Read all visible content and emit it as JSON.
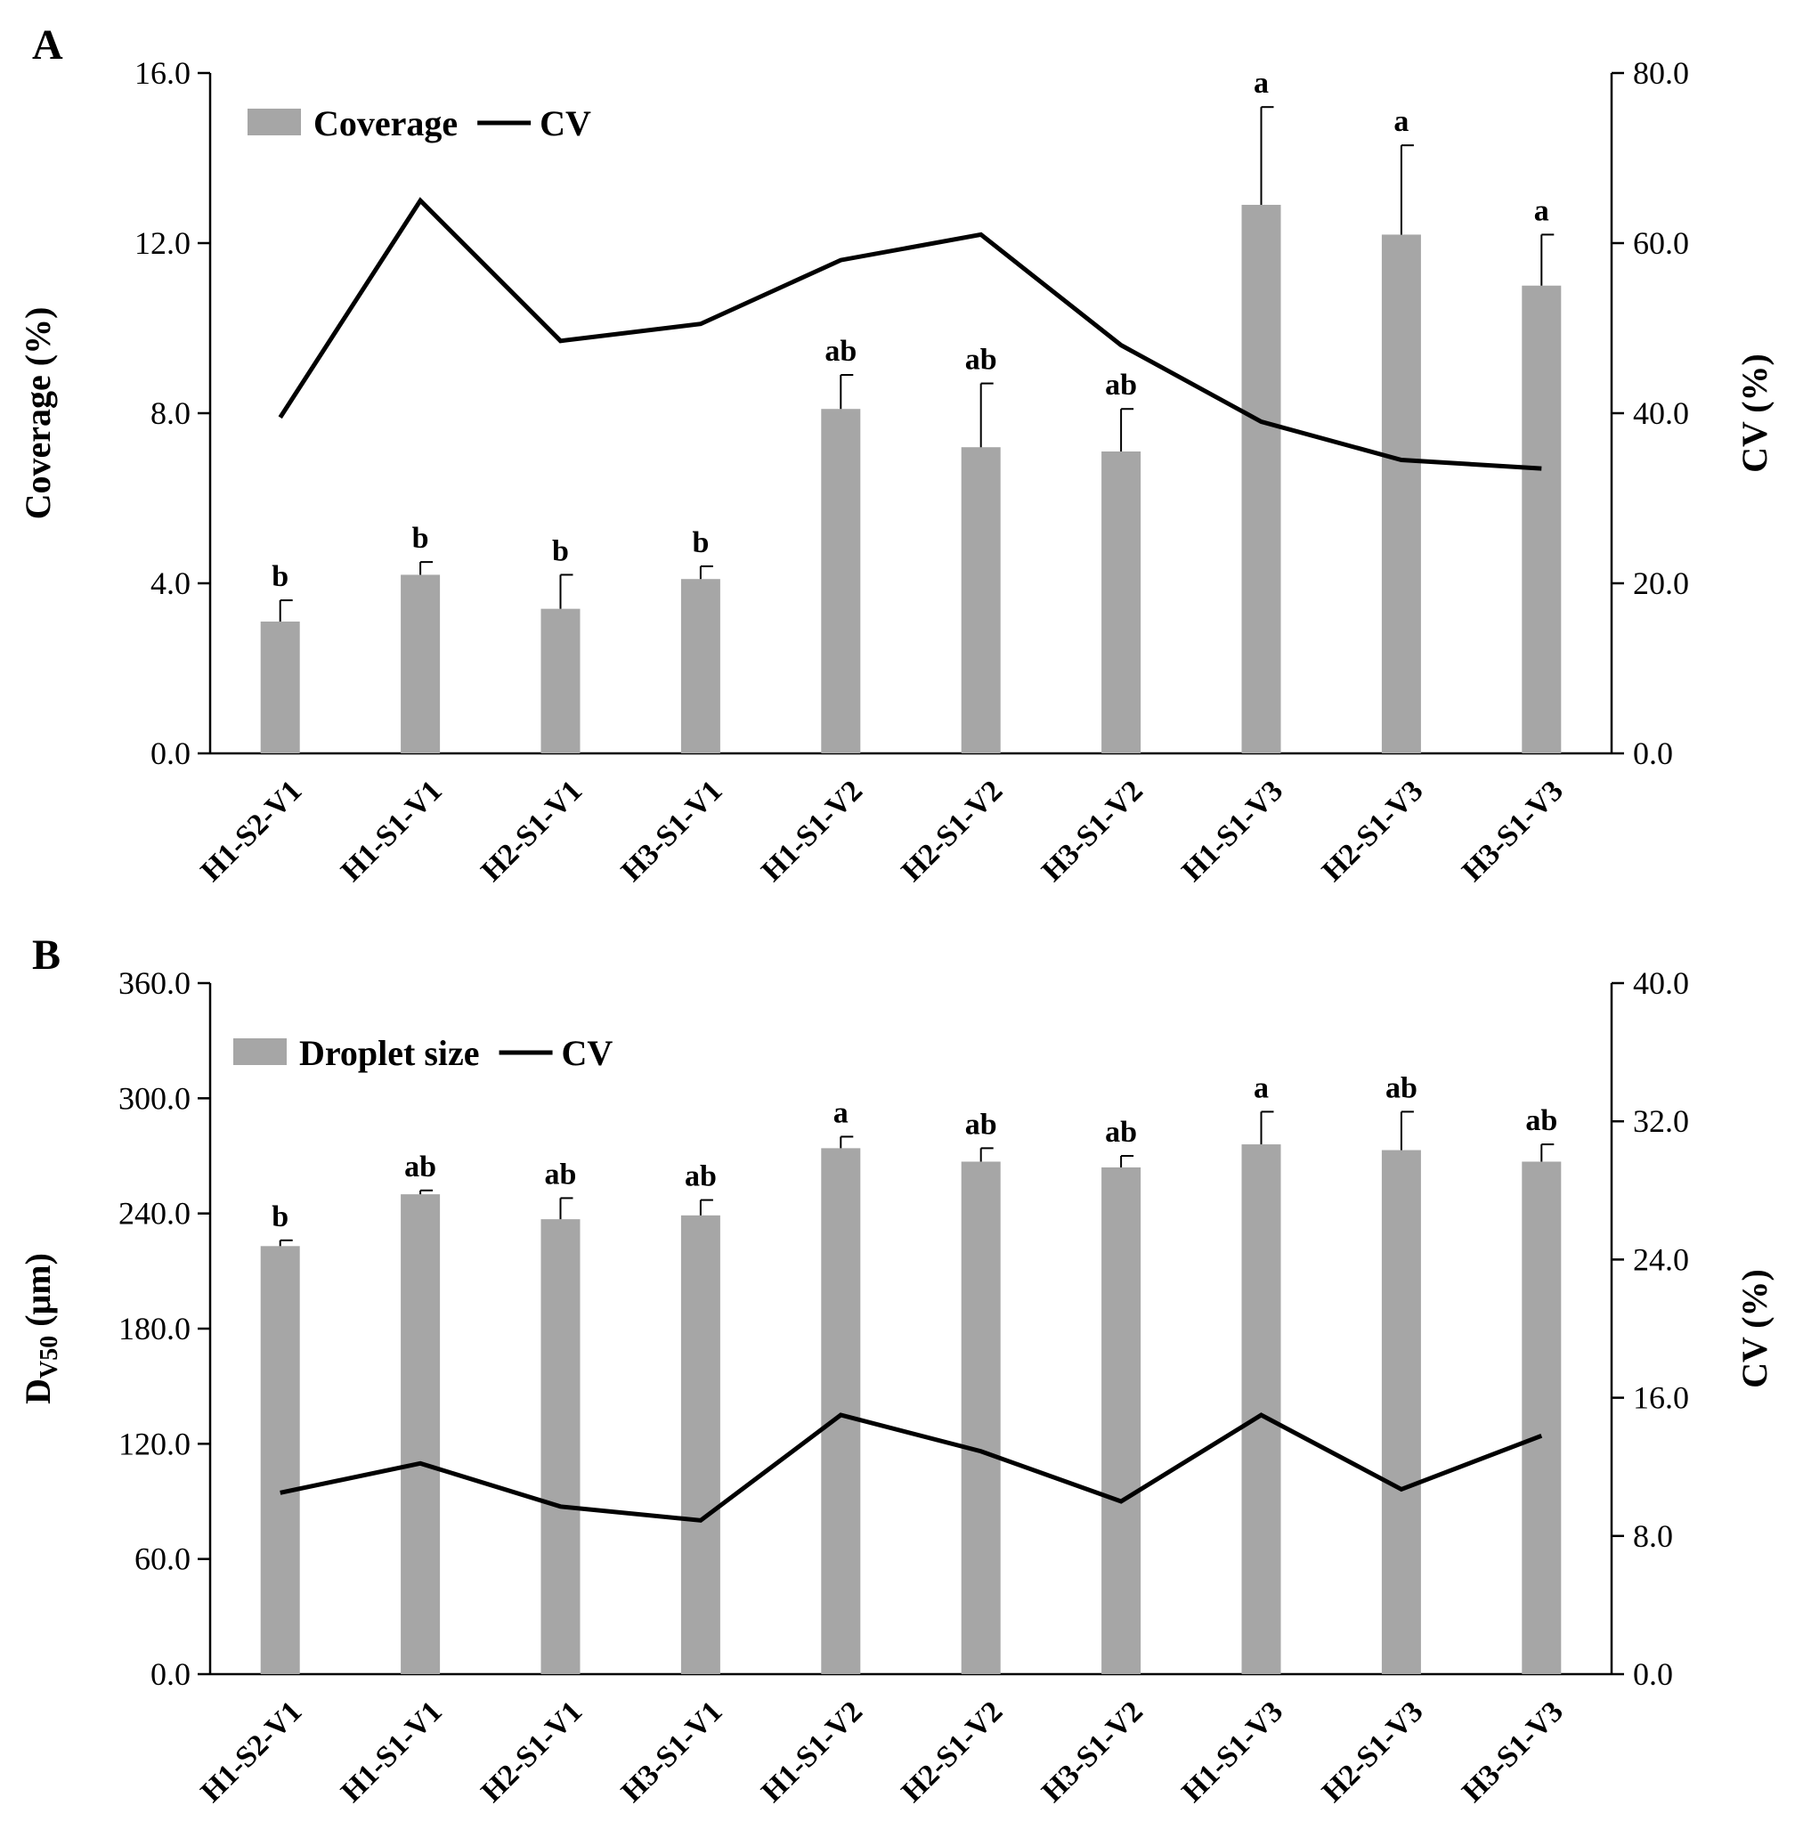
{
  "chart_data": [
    {
      "panel": "A",
      "type": "bar",
      "categories": [
        "H1-S2-V1",
        "H1-S1-V1",
        "H2-S1-V1",
        "H3-S1-V1",
        "H1-S1-V2",
        "H2-S1-V2",
        "H3-S1-V2",
        "H1-S1-V3",
        "H2-S1-V3",
        "H3-S1-V3"
      ],
      "series": [
        {
          "name": "Coverage",
          "kind": "bar",
          "axis": "left",
          "color": "#a6a6a6",
          "values": [
            3.1,
            4.2,
            3.4,
            4.1,
            8.1,
            7.2,
            7.1,
            12.9,
            12.2,
            11.0
          ],
          "error": [
            0.5,
            0.3,
            0.8,
            0.3,
            0.8,
            1.5,
            1.0,
            2.3,
            2.1,
            1.2
          ]
        },
        {
          "name": "CV",
          "kind": "line",
          "axis": "right",
          "color": "#000000",
          "values": [
            39.5,
            65.0,
            48.5,
            50.5,
            58.0,
            61.0,
            48.0,
            39.0,
            34.5,
            33.5
          ]
        }
      ],
      "significance": [
        "b",
        "b",
        "b",
        "b",
        "ab",
        "ab",
        "ab",
        "a",
        "a",
        "a"
      ],
      "ylabel": "Coverage (%)",
      "y2label": "CV (%)",
      "ylim": [
        0,
        16
      ],
      "y2lim": [
        0,
        80
      ],
      "yticks": [
        "0.0",
        "4.0",
        "8.0",
        "12.0",
        "16.0"
      ],
      "y2ticks": [
        "0.0",
        "20.0",
        "40.0",
        "60.0",
        "80.0"
      ],
      "legend": {
        "bar": "Coverage",
        "line": "CV",
        "position": "top-left"
      }
    },
    {
      "panel": "B",
      "type": "bar",
      "categories": [
        "H1-S2-V1",
        "H1-S1-V1",
        "H2-S1-V1",
        "H3-S1-V1",
        "H1-S1-V2",
        "H2-S1-V2",
        "H3-S1-V2",
        "H1-S1-V3",
        "H2-S1-V3",
        "H3-S1-V3"
      ],
      "series": [
        {
          "name": "Droplet size",
          "kind": "bar",
          "axis": "left",
          "color": "#a6a6a6",
          "values": [
            223,
            250,
            237,
            239,
            274,
            267,
            264,
            276,
            273,
            267
          ],
          "error": [
            3,
            2,
            11,
            8,
            6,
            7,
            6,
            17,
            20,
            9
          ]
        },
        {
          "name": "CV",
          "kind": "line",
          "axis": "right",
          "color": "#000000",
          "values": [
            10.5,
            12.2,
            9.7,
            8.9,
            15.0,
            12.9,
            10.0,
            15.0,
            10.7,
            13.8
          ]
        }
      ],
      "significance": [
        "b",
        "ab",
        "ab",
        "ab",
        "a",
        "ab",
        "ab",
        "a",
        "ab",
        "ab"
      ],
      "ylabel_main": "D",
      "ylabel_sub": "V50",
      "ylabel_unit": " (μm)",
      "y2label": "CV (%)",
      "ylim": [
        0,
        360
      ],
      "y2lim": [
        0,
        40
      ],
      "yticks": [
        "0.0",
        "60.0",
        "120.0",
        "180.0",
        "240.0",
        "300.0",
        "360.0"
      ],
      "y2ticks": [
        "0.0",
        "8.0",
        "16.0",
        "24.0",
        "32.0",
        "40.0"
      ],
      "legend": {
        "bar": "Droplet size",
        "line": "CV",
        "position": "top-left"
      }
    }
  ]
}
